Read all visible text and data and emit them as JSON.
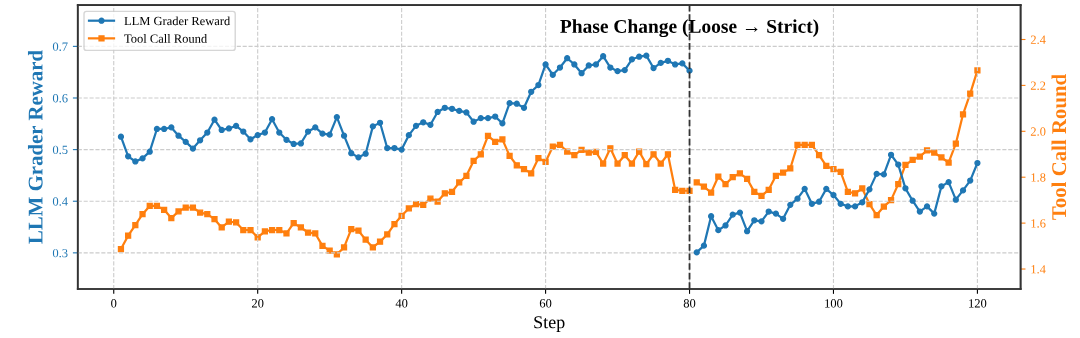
{
  "chart_data": {
    "type": "line",
    "xlabel": "Step",
    "ylabel": "LLM Grader Reward",
    "y2label": "Tool Call Round",
    "xlim": [
      -5,
      126
    ],
    "xticks": [
      0,
      20,
      40,
      60,
      80,
      100,
      120
    ],
    "ylim": [
      0.23,
      0.78
    ],
    "yticks": [
      0.3,
      0.4,
      0.5,
      0.6,
      0.7
    ],
    "y2lim": [
      1.313,
      2.55
    ],
    "y2ticks": [
      1.4,
      1.6,
      1.8,
      {
        "value": 2,
        "label": "2.0"
      },
      2.2,
      2.4
    ],
    "grid": true,
    "legend": "top left",
    "ref_lines": [
      {
        "axis": "x",
        "value": 80,
        "label": "Phase Change (Loose → Strict)",
        "color": "#333333",
        "line_style": "dashed"
      }
    ],
    "series": [
      {
        "name": "LLM Grader Reward",
        "color": "#1f77b4",
        "marker": "circle",
        "x": [
          1,
          2,
          3,
          4,
          5,
          6,
          7,
          8,
          9,
          10,
          11,
          12,
          13,
          14,
          15,
          16,
          17,
          18,
          19,
          20,
          21,
          22,
          23,
          24,
          25,
          26,
          27,
          28,
          29,
          30,
          31,
          32,
          33,
          34,
          35,
          36,
          37,
          38,
          39,
          40,
          41,
          42,
          43,
          44,
          45,
          46,
          47,
          48,
          49,
          50,
          51,
          52,
          53,
          54,
          55,
          56,
          57,
          58,
          59,
          60,
          61,
          62,
          63,
          64,
          65,
          66,
          67,
          68,
          69,
          70,
          71,
          72,
          73,
          74,
          75,
          76,
          77,
          78,
          79,
          80
        ],
        "values": [
          0.525,
          0.487,
          0.477,
          0.483,
          0.496,
          0.54,
          0.54,
          0.543,
          0.527,
          0.515,
          0.502,
          0.518,
          0.533,
          0.558,
          0.538,
          0.541,
          0.546,
          0.535,
          0.52,
          0.528,
          0.533,
          0.559,
          0.533,
          0.519,
          0.511,
          0.512,
          0.535,
          0.543,
          0.531,
          0.529,
          0.563,
          0.527,
          0.493,
          0.485,
          0.492,
          0.545,
          0.552,
          0.503,
          0.503,
          0.5,
          0.528,
          0.546,
          0.553,
          0.548,
          0.573,
          0.581,
          0.579,
          0.575,
          0.572,
          0.554,
          0.561,
          0.561,
          0.564,
          0.551,
          0.59,
          0.589,
          0.581,
          0.612,
          0.625,
          0.665,
          0.645,
          0.659,
          0.677,
          0.665,
          0.648,
          0.663,
          0.665,
          0.681,
          0.659,
          0.652,
          0.654,
          0.675,
          0.68,
          0.682,
          0.658,
          0.668,
          0.672,
          0.665,
          0.667,
          0.653
        ]
      },
      {
        "color": "#1f77b4",
        "marker": "circle",
        "x": [
          81,
          82,
          83,
          84,
          85,
          86,
          87,
          88,
          89,
          90,
          91,
          92,
          93,
          94,
          95,
          96,
          97,
          98,
          99,
          100,
          101,
          102,
          103,
          104,
          105,
          106,
          107,
          108,
          109,
          110,
          111,
          112,
          113,
          114,
          115,
          116,
          117,
          118,
          119,
          120
        ],
        "values": [
          0.301,
          0.314,
          0.371,
          0.344,
          0.353,
          0.374,
          0.378,
          0.342,
          0.363,
          0.361,
          0.38,
          0.376,
          0.366,
          0.393,
          0.405,
          0.424,
          0.395,
          0.399,
          0.424,
          0.412,
          0.395,
          0.39,
          0.39,
          0.398,
          0.423,
          0.453,
          0.452,
          0.49,
          0.471,
          0.425,
          0.401,
          0.38,
          0.39,
          0.376,
          0.429,
          0.437,
          0.403,
          0.421,
          0.44,
          0.474
        ]
      },
      {
        "name": "Tool Call Round",
        "color": "#ff7f0e",
        "marker": "square",
        "axis": "y2",
        "x": [
          1,
          2,
          3,
          4,
          5,
          6,
          7,
          8,
          9,
          10,
          11,
          12,
          13,
          14,
          15,
          16,
          17,
          18,
          19,
          20,
          21,
          22,
          23,
          24,
          25,
          26,
          27,
          28,
          29,
          30,
          31,
          32,
          33,
          34,
          35,
          36,
          37,
          38,
          39,
          40,
          41,
          42,
          43,
          44,
          45,
          46,
          47,
          48,
          49,
          50,
          51,
          52,
          53,
          54,
          55,
          56,
          57,
          58,
          59,
          60,
          61,
          62,
          63,
          64,
          65,
          66,
          67,
          68,
          69,
          70,
          71,
          72,
          73,
          74,
          75,
          76,
          77,
          78,
          79,
          80
        ],
        "values": [
          1.487,
          1.545,
          1.591,
          1.639,
          1.675,
          1.675,
          1.658,
          1.622,
          1.651,
          1.668,
          1.668,
          1.646,
          1.639,
          1.617,
          1.581,
          1.606,
          1.603,
          1.57,
          1.57,
          1.538,
          1.564,
          1.57,
          1.57,
          1.555,
          1.6,
          1.581,
          1.559,
          1.555,
          1.501,
          1.48,
          1.464,
          1.494,
          1.574,
          1.567,
          1.528,
          1.494,
          1.519,
          1.551,
          1.596,
          1.632,
          1.664,
          1.683,
          1.68,
          1.707,
          1.694,
          1.73,
          1.736,
          1.777,
          1.806,
          1.871,
          1.9,
          1.98,
          1.954,
          1.965,
          1.893,
          1.852,
          1.835,
          1.817,
          1.883,
          1.867,
          1.933,
          1.941,
          1.912,
          1.896,
          1.919,
          1.907,
          1.91,
          1.859,
          1.926,
          1.859,
          1.896,
          1.859,
          1.912,
          1.857,
          1.9,
          1.859,
          1.9,
          1.745,
          1.741,
          1.741
        ]
      },
      {
        "color": "#ff7f0e",
        "marker": "square",
        "axis": "y2",
        "x": [
          81,
          82,
          83,
          84,
          85,
          86,
          87,
          88,
          89,
          90,
          91,
          92,
          93,
          94,
          95,
          96,
          97,
          98,
          99,
          100,
          101,
          102,
          103,
          104,
          105,
          106,
          107,
          108,
          109,
          110,
          111,
          112,
          113,
          114,
          115,
          116,
          117,
          118,
          119,
          120
        ],
        "values": [
          1.777,
          1.759,
          1.733,
          1.803,
          1.77,
          1.8,
          1.817,
          1.793,
          1.736,
          1.719,
          1.745,
          1.806,
          1.82,
          1.838,
          1.941,
          1.941,
          1.941,
          1.896,
          1.849,
          1.835,
          1.823,
          1.736,
          1.73,
          1.751,
          1.683,
          1.635,
          1.672,
          1.7,
          1.77,
          1.854,
          1.875,
          1.89,
          1.917,
          1.907,
          1.886,
          1.864,
          1.946,
          2.074,
          2.164,
          2.265
        ]
      }
    ]
  }
}
